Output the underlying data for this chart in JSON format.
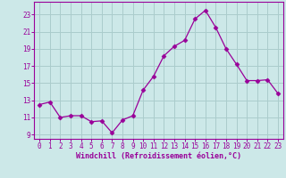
{
  "x": [
    0,
    1,
    2,
    3,
    4,
    5,
    6,
    7,
    8,
    9,
    10,
    11,
    12,
    13,
    14,
    15,
    16,
    17,
    18,
    19,
    20,
    21,
    22,
    23
  ],
  "y": [
    12.5,
    12.8,
    11.0,
    11.2,
    11.2,
    10.5,
    10.6,
    9.2,
    10.7,
    11.2,
    14.2,
    15.8,
    18.2,
    19.3,
    20.0,
    22.5,
    23.5,
    21.5,
    19.0,
    17.2,
    15.3,
    15.3,
    15.4,
    13.8
  ],
  "line_color": "#990099",
  "marker": "D",
  "marker_size": 2.5,
  "bg_color": "#cce8e8",
  "grid_color": "#aacccc",
  "xlabel": "Windchill (Refroidissement éolien,°C)",
  "ylabel": "",
  "xlim": [
    -0.5,
    23.5
  ],
  "ylim": [
    8.5,
    24.5
  ],
  "yticks": [
    9,
    11,
    13,
    15,
    17,
    19,
    21,
    23
  ],
  "xtick_labels": [
    "0",
    "1",
    "2",
    "3",
    "4",
    "5",
    "6",
    "7",
    "8",
    "9",
    "10",
    "11",
    "12",
    "13",
    "14",
    "15",
    "16",
    "17",
    "18",
    "19",
    "20",
    "21",
    "22",
    "23"
  ],
  "tick_color": "#990099",
  "label_color": "#990099",
  "spine_color": "#990099",
  "tick_fontsize": 5.5,
  "xlabel_fontsize": 6.0,
  "linewidth": 0.9
}
